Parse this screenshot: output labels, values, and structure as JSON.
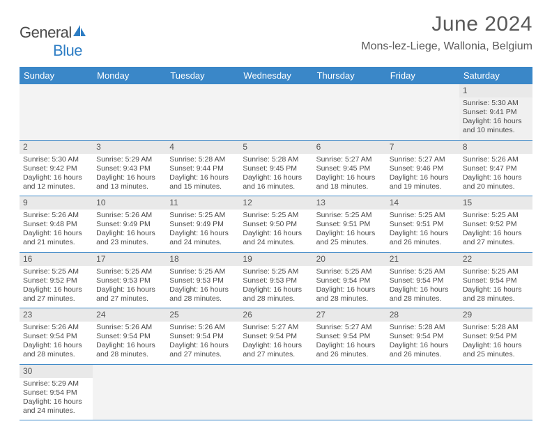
{
  "header": {
    "logo_general": "General",
    "logo_blue": "Blue",
    "month_title": "June 2024",
    "location": "Mons-lez-Liege, Wallonia, Belgium"
  },
  "colors": {
    "header_bg": "#3a87c8",
    "header_text": "#ffffff",
    "daynum_bg": "#e9e9e9",
    "cell_border": "#3a87c8",
    "body_text": "#4a4a4a",
    "logo_blue": "#2d7dc4"
  },
  "dayNames": [
    "Sunday",
    "Monday",
    "Tuesday",
    "Wednesday",
    "Thursday",
    "Friday",
    "Saturday"
  ],
  "startOffset": 6,
  "days": [
    {
      "n": 1,
      "sunrise": "Sunrise: 5:30 AM",
      "sunset": "Sunset: 9:41 PM",
      "dl1": "Daylight: 16 hours",
      "dl2": "and 10 minutes."
    },
    {
      "n": 2,
      "sunrise": "Sunrise: 5:30 AM",
      "sunset": "Sunset: 9:42 PM",
      "dl1": "Daylight: 16 hours",
      "dl2": "and 12 minutes."
    },
    {
      "n": 3,
      "sunrise": "Sunrise: 5:29 AM",
      "sunset": "Sunset: 9:43 PM",
      "dl1": "Daylight: 16 hours",
      "dl2": "and 13 minutes."
    },
    {
      "n": 4,
      "sunrise": "Sunrise: 5:28 AM",
      "sunset": "Sunset: 9:44 PM",
      "dl1": "Daylight: 16 hours",
      "dl2": "and 15 minutes."
    },
    {
      "n": 5,
      "sunrise": "Sunrise: 5:28 AM",
      "sunset": "Sunset: 9:45 PM",
      "dl1": "Daylight: 16 hours",
      "dl2": "and 16 minutes."
    },
    {
      "n": 6,
      "sunrise": "Sunrise: 5:27 AM",
      "sunset": "Sunset: 9:45 PM",
      "dl1": "Daylight: 16 hours",
      "dl2": "and 18 minutes."
    },
    {
      "n": 7,
      "sunrise": "Sunrise: 5:27 AM",
      "sunset": "Sunset: 9:46 PM",
      "dl1": "Daylight: 16 hours",
      "dl2": "and 19 minutes."
    },
    {
      "n": 8,
      "sunrise": "Sunrise: 5:26 AM",
      "sunset": "Sunset: 9:47 PM",
      "dl1": "Daylight: 16 hours",
      "dl2": "and 20 minutes."
    },
    {
      "n": 9,
      "sunrise": "Sunrise: 5:26 AM",
      "sunset": "Sunset: 9:48 PM",
      "dl1": "Daylight: 16 hours",
      "dl2": "and 21 minutes."
    },
    {
      "n": 10,
      "sunrise": "Sunrise: 5:26 AM",
      "sunset": "Sunset: 9:49 PM",
      "dl1": "Daylight: 16 hours",
      "dl2": "and 23 minutes."
    },
    {
      "n": 11,
      "sunrise": "Sunrise: 5:25 AM",
      "sunset": "Sunset: 9:49 PM",
      "dl1": "Daylight: 16 hours",
      "dl2": "and 24 minutes."
    },
    {
      "n": 12,
      "sunrise": "Sunrise: 5:25 AM",
      "sunset": "Sunset: 9:50 PM",
      "dl1": "Daylight: 16 hours",
      "dl2": "and 24 minutes."
    },
    {
      "n": 13,
      "sunrise": "Sunrise: 5:25 AM",
      "sunset": "Sunset: 9:51 PM",
      "dl1": "Daylight: 16 hours",
      "dl2": "and 25 minutes."
    },
    {
      "n": 14,
      "sunrise": "Sunrise: 5:25 AM",
      "sunset": "Sunset: 9:51 PM",
      "dl1": "Daylight: 16 hours",
      "dl2": "and 26 minutes."
    },
    {
      "n": 15,
      "sunrise": "Sunrise: 5:25 AM",
      "sunset": "Sunset: 9:52 PM",
      "dl1": "Daylight: 16 hours",
      "dl2": "and 27 minutes."
    },
    {
      "n": 16,
      "sunrise": "Sunrise: 5:25 AM",
      "sunset": "Sunset: 9:52 PM",
      "dl1": "Daylight: 16 hours",
      "dl2": "and 27 minutes."
    },
    {
      "n": 17,
      "sunrise": "Sunrise: 5:25 AM",
      "sunset": "Sunset: 9:53 PM",
      "dl1": "Daylight: 16 hours",
      "dl2": "and 27 minutes."
    },
    {
      "n": 18,
      "sunrise": "Sunrise: 5:25 AM",
      "sunset": "Sunset: 9:53 PM",
      "dl1": "Daylight: 16 hours",
      "dl2": "and 28 minutes."
    },
    {
      "n": 19,
      "sunrise": "Sunrise: 5:25 AM",
      "sunset": "Sunset: 9:53 PM",
      "dl1": "Daylight: 16 hours",
      "dl2": "and 28 minutes."
    },
    {
      "n": 20,
      "sunrise": "Sunrise: 5:25 AM",
      "sunset": "Sunset: 9:54 PM",
      "dl1": "Daylight: 16 hours",
      "dl2": "and 28 minutes."
    },
    {
      "n": 21,
      "sunrise": "Sunrise: 5:25 AM",
      "sunset": "Sunset: 9:54 PM",
      "dl1": "Daylight: 16 hours",
      "dl2": "and 28 minutes."
    },
    {
      "n": 22,
      "sunrise": "Sunrise: 5:25 AM",
      "sunset": "Sunset: 9:54 PM",
      "dl1": "Daylight: 16 hours",
      "dl2": "and 28 minutes."
    },
    {
      "n": 23,
      "sunrise": "Sunrise: 5:26 AM",
      "sunset": "Sunset: 9:54 PM",
      "dl1": "Daylight: 16 hours",
      "dl2": "and 28 minutes."
    },
    {
      "n": 24,
      "sunrise": "Sunrise: 5:26 AM",
      "sunset": "Sunset: 9:54 PM",
      "dl1": "Daylight: 16 hours",
      "dl2": "and 28 minutes."
    },
    {
      "n": 25,
      "sunrise": "Sunrise: 5:26 AM",
      "sunset": "Sunset: 9:54 PM",
      "dl1": "Daylight: 16 hours",
      "dl2": "and 27 minutes."
    },
    {
      "n": 26,
      "sunrise": "Sunrise: 5:27 AM",
      "sunset": "Sunset: 9:54 PM",
      "dl1": "Daylight: 16 hours",
      "dl2": "and 27 minutes."
    },
    {
      "n": 27,
      "sunrise": "Sunrise: 5:27 AM",
      "sunset": "Sunset: 9:54 PM",
      "dl1": "Daylight: 16 hours",
      "dl2": "and 26 minutes."
    },
    {
      "n": 28,
      "sunrise": "Sunrise: 5:28 AM",
      "sunset": "Sunset: 9:54 PM",
      "dl1": "Daylight: 16 hours",
      "dl2": "and 26 minutes."
    },
    {
      "n": 29,
      "sunrise": "Sunrise: 5:28 AM",
      "sunset": "Sunset: 9:54 PM",
      "dl1": "Daylight: 16 hours",
      "dl2": "and 25 minutes."
    },
    {
      "n": 30,
      "sunrise": "Sunrise: 5:29 AM",
      "sunset": "Sunset: 9:54 PM",
      "dl1": "Daylight: 16 hours",
      "dl2": "and 24 minutes."
    }
  ]
}
